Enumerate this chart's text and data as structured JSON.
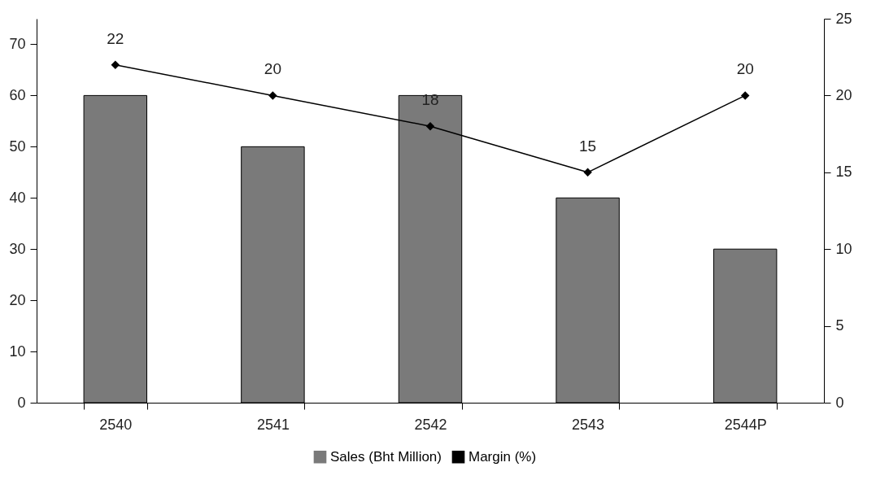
{
  "chart_data": {
    "type": "bar",
    "categories": [
      "2540",
      "2541",
      "2542",
      "2543",
      "2544P"
    ],
    "series": [
      {
        "name": "Sales (Bht Million)",
        "color": "#7a7a7a",
        "values": [
          60,
          50,
          60,
          40,
          30
        ]
      },
      {
        "name": "Margin (%)",
        "type": "line",
        "axis": "y2",
        "color": "#000000",
        "marker": "diamond",
        "values": [
          22,
          20,
          18,
          15,
          20
        ],
        "value_labels": [
          "22",
          "20",
          "18",
          "15",
          "20"
        ]
      }
    ],
    "ylim": [
      0,
      75
    ],
    "yticks": [
      0,
      10,
      20,
      30,
      40,
      50,
      60,
      70
    ],
    "y2lim": [
      0,
      25
    ],
    "y2ticks": [
      0,
      5,
      10,
      15,
      20,
      25
    ],
    "grid": false,
    "legend": "bottom"
  }
}
